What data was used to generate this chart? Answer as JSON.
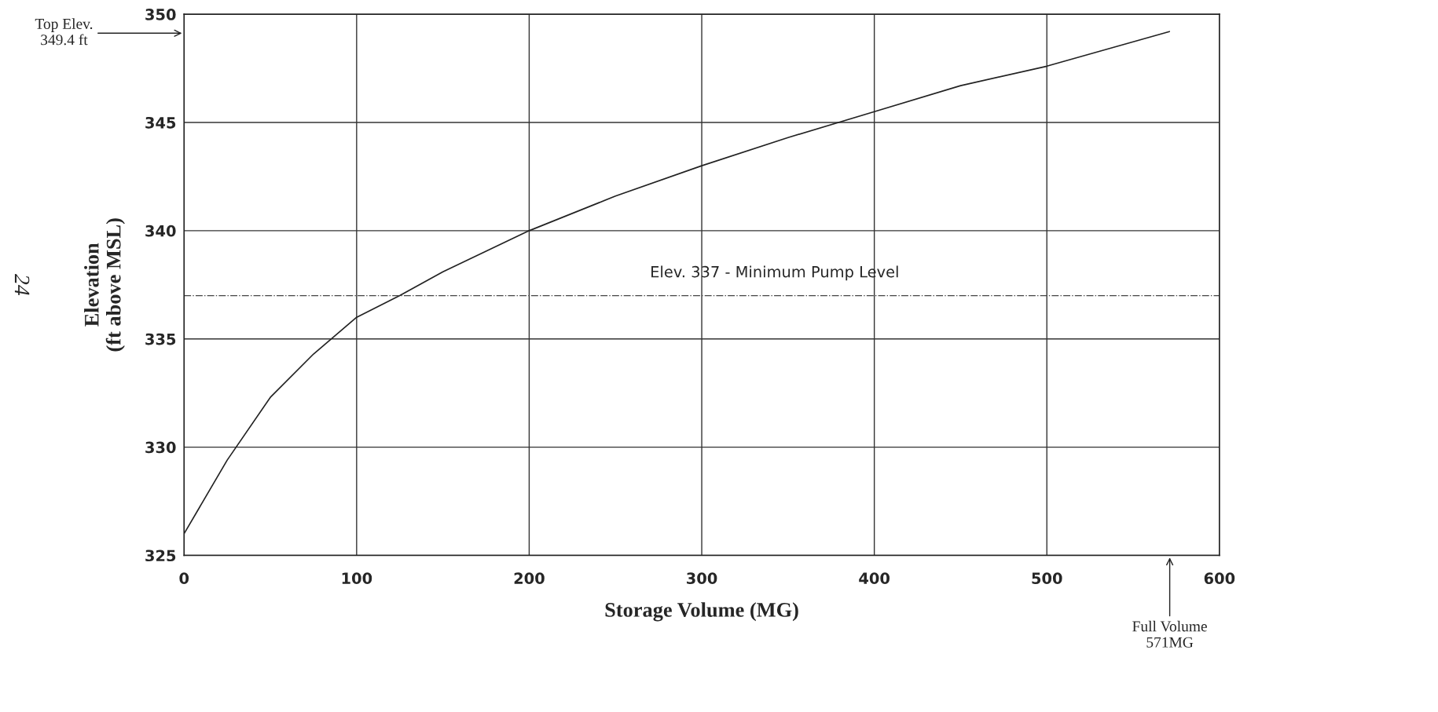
{
  "chart_data": {
    "type": "line",
    "xlabel": "Storage Volume (MG)",
    "ylabel": "Elevation\n(ft above MSL)",
    "x": [
      0,
      25,
      50,
      75,
      100,
      125,
      150,
      200,
      250,
      300,
      350,
      400,
      450,
      500,
      571
    ],
    "series": [
      {
        "color": "#222222",
        "values": [
          326,
          329.4,
          332.3,
          334.3,
          336,
          337,
          338.1,
          340,
          341.6,
          343,
          344.3,
          345.5,
          346.7,
          347.6,
          349.2
        ]
      }
    ],
    "xlim": [
      0,
      600
    ],
    "xticks": [
      0,
      100,
      200,
      300,
      400,
      500,
      600
    ],
    "ylim": [
      325,
      350
    ],
    "yticks": [
      325,
      330,
      335,
      340,
      345,
      350
    ],
    "grid": true,
    "marker": "none",
    "line_style": "solid",
    "ref_lines": [
      {
        "axis": "y",
        "value": 337,
        "label": "Elev. 337 - Minimum Pump Level",
        "color": "#444444",
        "line_style": "dashdot"
      }
    ],
    "annotations": [
      "Top Elev.\n349.4 ft",
      "Full Volume\n571MG",
      "24"
    ]
  }
}
